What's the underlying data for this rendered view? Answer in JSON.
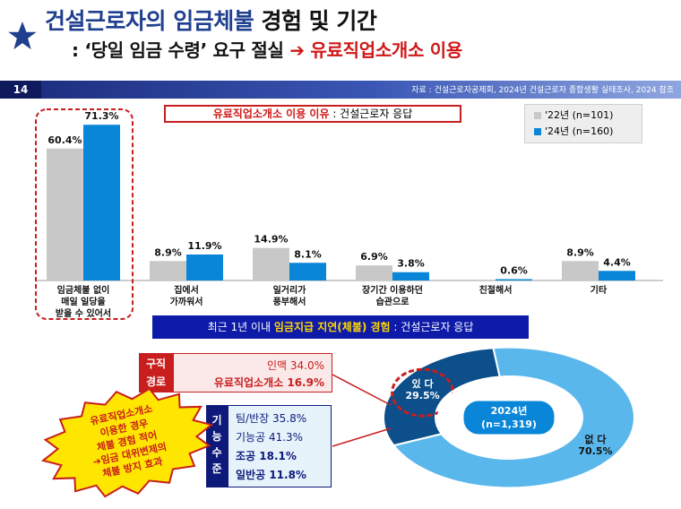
{
  "header": {
    "title_main": "건설근로자의 임금체불",
    "title_rest": "경험 및 기간",
    "subtitle_prefix": ": ‘당일 임금 수령’ 요구 절실",
    "subtitle_arrow": "➔",
    "subtitle_suffix": "유료직업소개소 이용",
    "page_number": "14",
    "source": "자료 : 건설근로자공제회, 2024년 건설근로자 종합생활 실태조사, 2024 참조"
  },
  "chart1": {
    "title_highlight": "유료직업소개소 이용 이유",
    "title_rest": " : 건설근로자 응답"
  },
  "chart2": {
    "banner_prefix": "최근 1년 이내 ",
    "banner_highlight": "임금지급 지연(체불) 경험",
    "banner_suffix": " : 건설근로자 응답"
  },
  "job_route": {
    "head": [
      "구직",
      "경로"
    ],
    "rows": [
      {
        "label": "인맥",
        "value": "34.0%",
        "bold": false
      },
      {
        "label": "유료직업소개소",
        "value": "16.9%",
        "bold": true
      }
    ]
  },
  "skill": {
    "head": [
      "기",
      "능",
      "수",
      "준"
    ],
    "rows": [
      {
        "label": "팀/반장",
        "value": "35.8%",
        "bold": false
      },
      {
        "label": "기능공",
        "value": "41.3%",
        "bold": false
      },
      {
        "label": "조공",
        "value": "18.1%",
        "bold": true
      },
      {
        "label": "일반공",
        "value": "11.8%",
        "bold": true
      }
    ]
  },
  "callout": {
    "lines": [
      "유료직업소개소",
      "이용한 경우",
      "체불 경험 적어",
      "➔임금 대위변제의",
      "체불 방지 효과"
    ]
  },
  "colors": {
    "series_2022": "#c8c8c8",
    "series_2024": "#0a86d8",
    "navy": "#0e1a7a",
    "red": "#c81e1e",
    "donut_light": "#5ab7ec",
    "donut_dark": "#0c4f8a"
  },
  "chart_data": [
    {
      "type": "bar",
      "categories": [
        "임금체불 없이\n매일 일당을\n받을 수 있어서",
        "집에서\n가까워서",
        "일거리가\n풍부해서",
        "장기간 이용하던\n습관으로",
        "친절해서",
        "기타"
      ],
      "series": [
        {
          "name": "'22년 (n=101)",
          "values": [
            60.4,
            8.9,
            14.9,
            6.9,
            null,
            8.9
          ]
        },
        {
          "name": "'24년 (n=160)",
          "values": [
            71.3,
            11.9,
            8.1,
            3.8,
            0.6,
            4.4
          ]
        }
      ],
      "value_labels": [
        [
          "60.4%",
          "8.9%",
          "14.9%",
          "6.9%",
          "",
          "8.9%"
        ],
        [
          "71.3%",
          "11.9%",
          "8.1%",
          "3.8%",
          "0.6%",
          "4.4%"
        ]
      ],
      "ylim": [
        0,
        80
      ],
      "legend": "top-right",
      "grid": false
    },
    {
      "type": "pie",
      "center_label": [
        "2024년",
        "(n=1,319)"
      ],
      "slices": [
        {
          "label": "있 다",
          "value": 29.5,
          "display": "29.5%"
        },
        {
          "label": "없 다",
          "value": 70.5,
          "display": "70.5%"
        }
      ]
    }
  ]
}
